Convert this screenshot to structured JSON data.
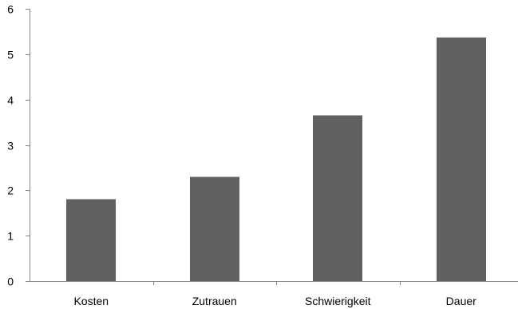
{
  "chart_data": {
    "type": "bar",
    "title": "",
    "xlabel": "",
    "ylabel": "",
    "categories": [
      "Kosten",
      "Zutrauen",
      "Schwierigkeit",
      "Dauer"
    ],
    "values": [
      1.8,
      2.3,
      3.65,
      5.37
    ],
    "ylim": [
      0,
      6
    ],
    "yticks": [
      0,
      1,
      2,
      3,
      4,
      5,
      6
    ],
    "ytick_labels": [
      "0",
      "1",
      "2",
      "3",
      "4",
      "5",
      "6"
    ],
    "grid": false,
    "legend": "none",
    "bar_color": "#616161",
    "axis_color": "#868686"
  }
}
